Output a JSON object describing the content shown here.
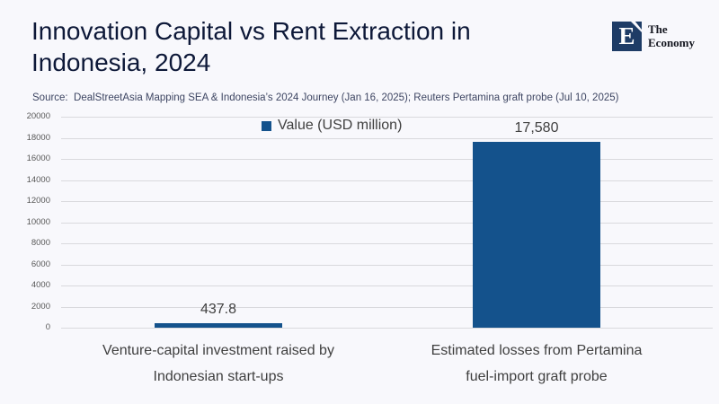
{
  "header": {
    "title_line1": "Innovation Capital vs Rent Extraction in",
    "title_line2": "Indonesia, 2024",
    "source": "Source:  DealStreetAsia Mapping SEA & Indonesia’s 2024 Journey (Jan 16, 2025); Reuters Pertamina graft probe (Jul 10, 2025)"
  },
  "brand": {
    "logo_letter": "E",
    "name_line1": "The",
    "name_line2": "Economy"
  },
  "colors": {
    "bar": "#14528c",
    "logo_navy": "#1e3c66",
    "title_navy": "#0d1838",
    "background": "#f8f8fc",
    "gridline": "#d9d9dd"
  },
  "chart_data": {
    "type": "bar",
    "title": "Innovation Capital vs Rent Extraction in Indonesia, 2024",
    "series": [
      {
        "name": "Value (USD million)",
        "values": [
          437.8,
          17580
        ]
      }
    ],
    "value_labels": [
      "437.8",
      "17,580"
    ],
    "categories": [
      "Venture-capital investment raised by Indonesian start-ups",
      "Estimated losses from Pertamina fuel-import graft probe"
    ],
    "xlabel": "",
    "ylabel": "",
    "ylim": [
      0,
      20000
    ],
    "ytick_step": 2000,
    "yticks": [
      "20000",
      "18000",
      "16000",
      "14000",
      "12000",
      "10000",
      "8000",
      "6000",
      "4000",
      "2000",
      "0"
    ],
    "grid": true,
    "legend_position": "top-center",
    "bar_color": "#14528c"
  },
  "xaxis": {
    "cat1_line1": "Venture-capital investment raised by",
    "cat1_line2": "Indonesian start-ups",
    "cat2_line1": "Estimated losses from Pertamina",
    "cat2_line2": "fuel-import graft probe"
  }
}
